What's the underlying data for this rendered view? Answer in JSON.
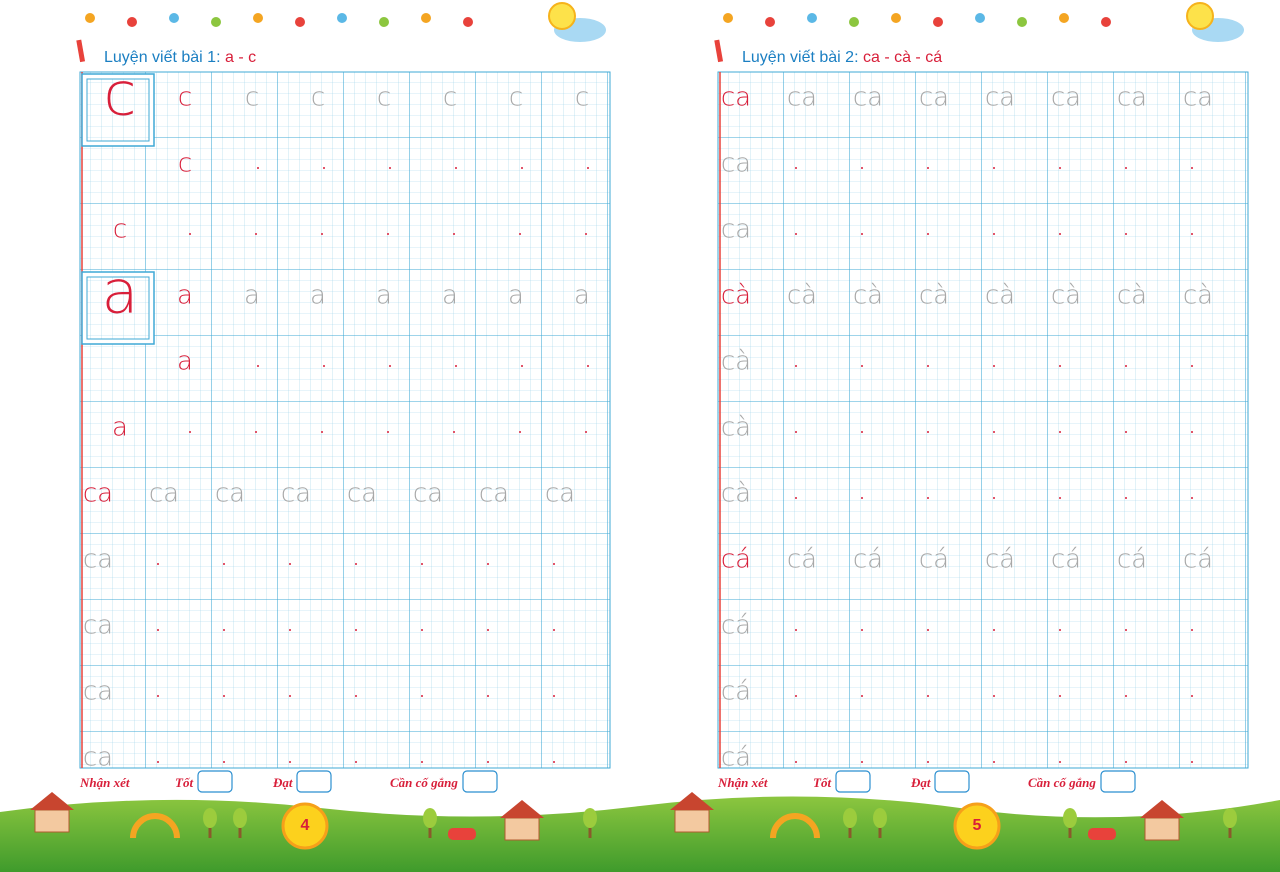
{
  "pages": [
    {
      "lesson_label": "Luyện viết bài 1:",
      "lesson_letters": "a - c",
      "rows": [
        {
          "text": "c",
          "kind": "sample"
        },
        {
          "text": "c",
          "kind": "copy"
        },
        {
          "text": "c",
          "kind": "copy-margin"
        },
        {
          "text": "a",
          "kind": "sample"
        },
        {
          "text": "a",
          "kind": "copy"
        },
        {
          "text": "a",
          "kind": "copy-margin"
        },
        {
          "text": "ca",
          "kind": "lead"
        },
        {
          "text": "ca",
          "kind": "trace"
        },
        {
          "text": "ca",
          "kind": "trace"
        },
        {
          "text": "ca",
          "kind": "trace"
        },
        {
          "text": "ca",
          "kind": "trace"
        }
      ],
      "review": {
        "label": "Nhận xét",
        "options": [
          "Tốt",
          "Đạt",
          "Cần cố gắng"
        ]
      },
      "page_number": "4"
    },
    {
      "lesson_label": "Luyện viết bài 2:",
      "lesson_letters": "ca - cà - cá",
      "rows": [
        {
          "text": "ca",
          "kind": "lead"
        },
        {
          "text": "ca",
          "kind": "trace"
        },
        {
          "text": "ca",
          "kind": "trace"
        },
        {
          "text": "cà",
          "kind": "lead"
        },
        {
          "text": "cà",
          "kind": "trace"
        },
        {
          "text": "cà",
          "kind": "trace"
        },
        {
          "text": "cà",
          "kind": "trace"
        },
        {
          "text": "cá",
          "kind": "lead"
        },
        {
          "text": "cá",
          "kind": "trace"
        },
        {
          "text": "cá",
          "kind": "trace"
        },
        {
          "text": "cá",
          "kind": "trace"
        }
      ],
      "review": {
        "label": "Nhận xét",
        "options": [
          "Tốt",
          "Đạt",
          "Cần cố gắng"
        ]
      },
      "page_number": "5"
    }
  ]
}
